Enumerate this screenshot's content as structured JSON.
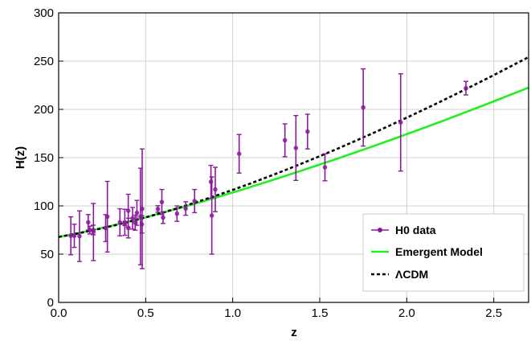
{
  "chart_data": {
    "type": "scatter",
    "xlabel": "z",
    "ylabel": "H(z)",
    "xlim": [
      0,
      2.7
    ],
    "ylim": [
      0,
      300
    ],
    "xticks": [
      "0.0",
      "0.5",
      "1.0",
      "1.5",
      "2.0",
      "2.5"
    ],
    "yticks": [
      "0",
      "50",
      "100",
      "150",
      "200",
      "250",
      "300"
    ],
    "grid": true,
    "legend_position": "bottom-right",
    "series": [
      {
        "name": "H0 data",
        "kind": "errorbar",
        "color": "#8B1A9B",
        "points": [
          {
            "z": 0.07,
            "H": 69.0,
            "err": 19.6
          },
          {
            "z": 0.09,
            "H": 69.0,
            "err": 12.0
          },
          {
            "z": 0.12,
            "H": 68.6,
            "err": 26.2
          },
          {
            "z": 0.17,
            "H": 83.0,
            "err": 8.0
          },
          {
            "z": 0.179,
            "H": 75.0,
            "err": 4.0
          },
          {
            "z": 0.199,
            "H": 75.0,
            "err": 5.0
          },
          {
            "z": 0.2,
            "H": 72.9,
            "err": 29.6
          },
          {
            "z": 0.27,
            "H": 77.0,
            "err": 14.0
          },
          {
            "z": 0.28,
            "H": 88.8,
            "err": 36.6
          },
          {
            "z": 0.352,
            "H": 83.0,
            "err": 14.0
          },
          {
            "z": 0.38,
            "H": 81.5,
            "err": 1.9
          },
          {
            "z": 0.3802,
            "H": 83.0,
            "err": 13.5
          },
          {
            "z": 0.4,
            "H": 95.0,
            "err": 17.0
          },
          {
            "z": 0.4004,
            "H": 77.0,
            "err": 10.2
          },
          {
            "z": 0.4247,
            "H": 87.1,
            "err": 11.2
          },
          {
            "z": 0.44,
            "H": 82.6,
            "err": 7.8
          },
          {
            "z": 0.4497,
            "H": 92.8,
            "err": 12.9
          },
          {
            "z": 0.47,
            "H": 89.0,
            "err": 50.0
          },
          {
            "z": 0.4783,
            "H": 80.9,
            "err": 9.0
          },
          {
            "z": 0.48,
            "H": 97.0,
            "err": 62.0
          },
          {
            "z": 0.57,
            "H": 96.8,
            "err": 3.4
          },
          {
            "z": 0.593,
            "H": 104.0,
            "err": 13.0
          },
          {
            "z": 0.6,
            "H": 87.9,
            "err": 6.1
          },
          {
            "z": 0.68,
            "H": 92.0,
            "err": 8.0
          },
          {
            "z": 0.73,
            "H": 97.3,
            "err": 7.0
          },
          {
            "z": 0.781,
            "H": 105.0,
            "err": 12.0
          },
          {
            "z": 0.875,
            "H": 125.0,
            "err": 17.0
          },
          {
            "z": 0.88,
            "H": 90.0,
            "err": 40.0
          },
          {
            "z": 0.9,
            "H": 117.0,
            "err": 23.0
          },
          {
            "z": 1.037,
            "H": 154.0,
            "err": 20.0
          },
          {
            "z": 1.3,
            "H": 168.0,
            "err": 17.0
          },
          {
            "z": 1.363,
            "H": 160.0,
            "err": 33.6
          },
          {
            "z": 1.43,
            "H": 177.0,
            "err": 18.0
          },
          {
            "z": 1.53,
            "H": 140.0,
            "err": 14.0
          },
          {
            "z": 1.75,
            "H": 202.0,
            "err": 40.0
          },
          {
            "z": 1.965,
            "H": 186.5,
            "err": 50.4
          },
          {
            "z": 2.34,
            "H": 222.0,
            "err": 7.0
          }
        ]
      },
      {
        "name": "Emergent Model",
        "kind": "line",
        "color": "#22EE22",
        "line_style": "solid",
        "x": [
          0,
          0.1,
          0.2,
          0.3,
          0.4,
          0.5,
          0.6,
          0.7,
          0.8,
          0.9,
          1.0,
          1.1,
          1.2,
          1.3,
          1.4,
          1.5,
          1.6,
          1.7,
          1.8,
          1.9,
          2.0,
          2.1,
          2.2,
          2.3,
          2.4,
          2.5,
          2.6,
          2.7
        ],
        "y": [
          67.8,
          71.3,
          75.1,
          79.2,
          83.6,
          88.2,
          93.0,
          98.0,
          103.1,
          108.4,
          113.8,
          119.4,
          125.1,
          130.9,
          136.8,
          142.8,
          148.9,
          155.1,
          161.4,
          167.8,
          174.3,
          180.9,
          187.6,
          194.4,
          201.3,
          208.3,
          215.4,
          222.6
        ]
      },
      {
        "name": "ΛCDM",
        "kind": "line",
        "color": "#000000",
        "line_style": "dashed",
        "x": [
          0,
          0.1,
          0.2,
          0.3,
          0.4,
          0.5,
          0.6,
          0.7,
          0.8,
          0.9,
          1.0,
          1.1,
          1.2,
          1.3,
          1.4,
          1.5,
          1.6,
          1.7,
          1.8,
          1.9,
          2.0,
          2.1,
          2.2,
          2.3,
          2.4,
          2.5,
          2.6,
          2.7
        ],
        "y": [
          67.8,
          71.1,
          74.8,
          78.9,
          83.3,
          88.1,
          93.2,
          98.6,
          104.3,
          110.3,
          116.6,
          123.1,
          129.9,
          136.9,
          144.1,
          151.5,
          159.1,
          166.9,
          174.9,
          183.1,
          191.4,
          199.9,
          208.6,
          217.4,
          226.4,
          235.5,
          244.8,
          254.2
        ]
      }
    ]
  }
}
